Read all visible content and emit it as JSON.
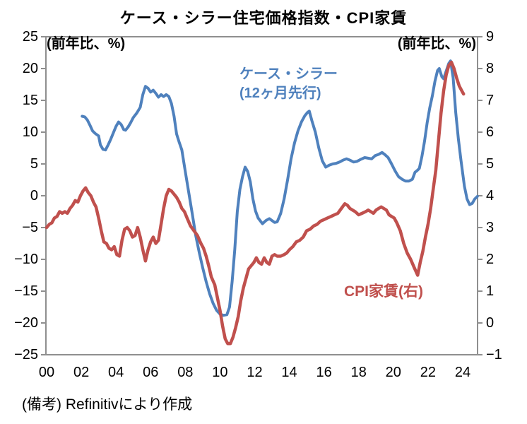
{
  "title": "ケース・シラー住宅価格指数・CPI家賃",
  "footer": "(備考) Refinitivにより作成",
  "colors": {
    "axis": "#8f8f8f",
    "case_shiller": "#4f81bd",
    "cpi_rent": "#c0504d"
  },
  "chart_data": {
    "type": "line",
    "title": "ケース・シラー住宅価格指数・CPI家賃",
    "grid": false,
    "x_axis": {
      "labels": [
        "00",
        "02",
        "04",
        "06",
        "08",
        "10",
        "12",
        "14",
        "16",
        "18",
        "20",
        "22",
        "24"
      ],
      "label_years": [
        2000,
        2002,
        2004,
        2006,
        2008,
        2010,
        2012,
        2014,
        2016,
        2018,
        2020,
        2022,
        2024
      ],
      "range_years": [
        2000,
        2024.9
      ]
    },
    "left_axis": {
      "unit": "(前年比、%)",
      "range": [
        -25,
        25
      ],
      "tick_values": [
        25,
        20,
        15,
        10,
        5,
        0,
        -5,
        -10,
        -15,
        -20,
        -25
      ],
      "tick_labels": [
        "25",
        "20",
        "15",
        "10",
        "5",
        "0",
        "−5",
        "−10",
        "−15",
        "−20",
        "−25"
      ]
    },
    "right_axis": {
      "unit": "(前年比、%)",
      "range": [
        -1,
        9
      ],
      "tick_values": [
        9,
        8,
        7,
        6,
        5,
        4,
        3,
        2,
        1,
        0,
        -1
      ],
      "tick_labels": [
        "9",
        "8",
        "7",
        "6",
        "5",
        "4",
        "3",
        "2",
        "1",
        "0",
        "−1"
      ]
    },
    "series": [
      {
        "name": "ケース・シラー(12ヶ月先行)",
        "legend_line1": "ケース・シラー",
        "legend_line2": "(12ヶ月先行)",
        "axis": "left",
        "color": "#4f81bd",
        "points": [
          [
            2002.05,
            12.5
          ],
          [
            2002.2,
            12.4
          ],
          [
            2002.35,
            11.9
          ],
          [
            2002.5,
            11.1
          ],
          [
            2002.65,
            10.2
          ],
          [
            2002.8,
            9.8
          ],
          [
            2003.0,
            9.4
          ],
          [
            2003.1,
            8.0
          ],
          [
            2003.25,
            7.3
          ],
          [
            2003.4,
            7.2
          ],
          [
            2003.55,
            8.0
          ],
          [
            2003.7,
            8.9
          ],
          [
            2003.85,
            9.9
          ],
          [
            2004.0,
            10.9
          ],
          [
            2004.15,
            11.6
          ],
          [
            2004.3,
            11.2
          ],
          [
            2004.45,
            10.4
          ],
          [
            2004.55,
            10.3
          ],
          [
            2004.7,
            10.8
          ],
          [
            2004.85,
            11.5
          ],
          [
            2005.0,
            12.3
          ],
          [
            2005.2,
            13.0
          ],
          [
            2005.4,
            13.9
          ],
          [
            2005.55,
            15.9
          ],
          [
            2005.7,
            17.2
          ],
          [
            2005.85,
            16.9
          ],
          [
            2006.0,
            16.3
          ],
          [
            2006.15,
            16.6
          ],
          [
            2006.3,
            16.1
          ],
          [
            2006.45,
            15.5
          ],
          [
            2006.6,
            15.9
          ],
          [
            2006.75,
            15.6
          ],
          [
            2006.9,
            15.9
          ],
          [
            2007.05,
            15.6
          ],
          [
            2007.2,
            14.5
          ],
          [
            2007.35,
            12.5
          ],
          [
            2007.5,
            9.7
          ],
          [
            2007.65,
            8.4
          ],
          [
            2007.8,
            7.2
          ],
          [
            2008.0,
            3.8
          ],
          [
            2008.2,
            0.5
          ],
          [
            2008.4,
            -2.8
          ],
          [
            2008.6,
            -6.2
          ],
          [
            2008.8,
            -8.9
          ],
          [
            2009.0,
            -11.3
          ],
          [
            2009.2,
            -13.5
          ],
          [
            2009.4,
            -15.4
          ],
          [
            2009.6,
            -16.9
          ],
          [
            2009.8,
            -18.0
          ],
          [
            2010.0,
            -18.6
          ],
          [
            2010.2,
            -18.8
          ],
          [
            2010.4,
            -18.7
          ],
          [
            2010.55,
            -17.5
          ],
          [
            2010.7,
            -13.5
          ],
          [
            2010.85,
            -8.5
          ],
          [
            2011.0,
            -2.5
          ],
          [
            2011.15,
            1.0
          ],
          [
            2011.3,
            3.0
          ],
          [
            2011.45,
            4.5
          ],
          [
            2011.6,
            3.8
          ],
          [
            2011.75,
            2.2
          ],
          [
            2011.9,
            -0.5
          ],
          [
            2012.05,
            -2.4
          ],
          [
            2012.2,
            -3.5
          ],
          [
            2012.45,
            -4.4
          ],
          [
            2012.65,
            -3.9
          ],
          [
            2012.85,
            -3.6
          ],
          [
            2013.0,
            -3.9
          ],
          [
            2013.15,
            -4.2
          ],
          [
            2013.3,
            -4.1
          ],
          [
            2013.5,
            -2.8
          ],
          [
            2013.7,
            -0.5
          ],
          [
            2013.9,
            2.5
          ],
          [
            2014.1,
            5.8
          ],
          [
            2014.3,
            8.3
          ],
          [
            2014.5,
            10.2
          ],
          [
            2014.7,
            11.6
          ],
          [
            2014.9,
            12.6
          ],
          [
            2015.05,
            13.1
          ],
          [
            2015.15,
            13.3
          ],
          [
            2015.3,
            11.8
          ],
          [
            2015.5,
            10.0
          ],
          [
            2015.7,
            7.5
          ],
          [
            2015.9,
            5.5
          ],
          [
            2016.1,
            4.5
          ],
          [
            2016.3,
            4.8
          ],
          [
            2016.5,
            5.0
          ],
          [
            2016.7,
            5.1
          ],
          [
            2016.9,
            5.3
          ],
          [
            2017.1,
            5.6
          ],
          [
            2017.3,
            5.8
          ],
          [
            2017.5,
            5.6
          ],
          [
            2017.7,
            5.3
          ],
          [
            2017.9,
            5.4
          ],
          [
            2018.1,
            5.7
          ],
          [
            2018.35,
            6.0
          ],
          [
            2018.55,
            5.9
          ],
          [
            2018.75,
            5.8
          ],
          [
            2018.95,
            6.3
          ],
          [
            2019.15,
            6.5
          ],
          [
            2019.35,
            6.8
          ],
          [
            2019.5,
            6.5
          ],
          [
            2019.7,
            6.0
          ],
          [
            2019.9,
            5.0
          ],
          [
            2020.1,
            3.9
          ],
          [
            2020.3,
            3.0
          ],
          [
            2020.5,
            2.6
          ],
          [
            2020.7,
            2.3
          ],
          [
            2020.9,
            2.3
          ],
          [
            2021.1,
            2.6
          ],
          [
            2021.25,
            3.7
          ],
          [
            2021.35,
            3.9
          ],
          [
            2021.5,
            4.3
          ],
          [
            2021.65,
            6.2
          ],
          [
            2021.8,
            8.6
          ],
          [
            2021.95,
            11.5
          ],
          [
            2022.1,
            13.8
          ],
          [
            2022.25,
            15.7
          ],
          [
            2022.4,
            18.0
          ],
          [
            2022.55,
            19.7
          ],
          [
            2022.65,
            20.0
          ],
          [
            2022.8,
            18.7
          ],
          [
            2022.9,
            18.4
          ],
          [
            2023.05,
            19.6
          ],
          [
            2023.2,
            20.8
          ],
          [
            2023.3,
            21.2
          ],
          [
            2023.45,
            18.5
          ],
          [
            2023.6,
            13.1
          ],
          [
            2023.75,
            9.0
          ],
          [
            2023.9,
            5.6
          ],
          [
            2024.1,
            1.5
          ],
          [
            2024.25,
            -0.5
          ],
          [
            2024.4,
            -1.4
          ],
          [
            2024.55,
            -1.2
          ],
          [
            2024.7,
            -0.5
          ],
          [
            2024.85,
            -0.1
          ]
        ]
      },
      {
        "name": "CPI家賃(右)",
        "legend": "CPI家賃(右)",
        "axis": "right",
        "color": "#c0504d",
        "points": [
          [
            2000.0,
            3.0
          ],
          [
            2000.15,
            3.1
          ],
          [
            2000.3,
            3.15
          ],
          [
            2000.45,
            3.3
          ],
          [
            2000.6,
            3.35
          ],
          [
            2000.75,
            3.5
          ],
          [
            2000.9,
            3.45
          ],
          [
            2001.05,
            3.5
          ],
          [
            2001.2,
            3.45
          ],
          [
            2001.35,
            3.6
          ],
          [
            2001.5,
            3.7
          ],
          [
            2001.65,
            3.85
          ],
          [
            2001.8,
            3.8
          ],
          [
            2001.95,
            4.0
          ],
          [
            2002.1,
            4.15
          ],
          [
            2002.25,
            4.25
          ],
          [
            2002.4,
            4.1
          ],
          [
            2002.55,
            4.0
          ],
          [
            2002.7,
            3.8
          ],
          [
            2002.85,
            3.65
          ],
          [
            2003.0,
            3.3
          ],
          [
            2003.15,
            2.9
          ],
          [
            2003.3,
            2.55
          ],
          [
            2003.45,
            2.5
          ],
          [
            2003.6,
            2.35
          ],
          [
            2003.75,
            2.3
          ],
          [
            2003.9,
            2.4
          ],
          [
            2004.05,
            2.15
          ],
          [
            2004.2,
            2.1
          ],
          [
            2004.35,
            2.6
          ],
          [
            2004.5,
            2.95
          ],
          [
            2004.65,
            3.0
          ],
          [
            2004.8,
            2.9
          ],
          [
            2004.95,
            2.7
          ],
          [
            2005.1,
            2.75
          ],
          [
            2005.25,
            3.0
          ],
          [
            2005.4,
            2.7
          ],
          [
            2005.55,
            2.3
          ],
          [
            2005.7,
            1.95
          ],
          [
            2005.85,
            2.3
          ],
          [
            2006.0,
            2.55
          ],
          [
            2006.15,
            2.7
          ],
          [
            2006.3,
            2.5
          ],
          [
            2006.45,
            2.6
          ],
          [
            2006.6,
            3.1
          ],
          [
            2006.75,
            3.6
          ],
          [
            2006.9,
            4.0
          ],
          [
            2007.05,
            4.2
          ],
          [
            2007.2,
            4.15
          ],
          [
            2007.35,
            4.05
          ],
          [
            2007.5,
            3.95
          ],
          [
            2007.65,
            3.8
          ],
          [
            2007.8,
            3.6
          ],
          [
            2007.95,
            3.5
          ],
          [
            2008.1,
            3.3
          ],
          [
            2008.3,
            3.05
          ],
          [
            2008.5,
            2.9
          ],
          [
            2008.7,
            2.75
          ],
          [
            2008.9,
            2.5
          ],
          [
            2009.05,
            2.35
          ],
          [
            2009.2,
            2.1
          ],
          [
            2009.35,
            1.8
          ],
          [
            2009.5,
            1.45
          ],
          [
            2009.7,
            1.2
          ],
          [
            2009.85,
            0.8
          ],
          [
            2010.0,
            0.4
          ],
          [
            2010.15,
            -0.1
          ],
          [
            2010.3,
            -0.5
          ],
          [
            2010.45,
            -0.65
          ],
          [
            2010.6,
            -0.65
          ],
          [
            2010.75,
            -0.45
          ],
          [
            2010.9,
            -0.15
          ],
          [
            2011.05,
            0.2
          ],
          [
            2011.2,
            0.7
          ],
          [
            2011.35,
            1.1
          ],
          [
            2011.5,
            1.4
          ],
          [
            2011.65,
            1.7
          ],
          [
            2011.8,
            1.8
          ],
          [
            2011.95,
            1.9
          ],
          [
            2012.1,
            2.05
          ],
          [
            2012.25,
            1.9
          ],
          [
            2012.4,
            1.85
          ],
          [
            2012.55,
            2.05
          ],
          [
            2012.7,
            1.9
          ],
          [
            2012.85,
            1.85
          ],
          [
            2013.0,
            2.1
          ],
          [
            2013.15,
            2.15
          ],
          [
            2013.3,
            2.1
          ],
          [
            2013.5,
            2.1
          ],
          [
            2013.7,
            2.15
          ],
          [
            2013.85,
            2.2
          ],
          [
            2014.0,
            2.3
          ],
          [
            2014.2,
            2.4
          ],
          [
            2014.4,
            2.55
          ],
          [
            2014.6,
            2.6
          ],
          [
            2014.8,
            2.7
          ],
          [
            2015.0,
            2.9
          ],
          [
            2015.2,
            2.95
          ],
          [
            2015.4,
            3.05
          ],
          [
            2015.6,
            3.1
          ],
          [
            2015.8,
            3.2
          ],
          [
            2016.0,
            3.25
          ],
          [
            2016.2,
            3.3
          ],
          [
            2016.4,
            3.35
          ],
          [
            2016.6,
            3.4
          ],
          [
            2016.8,
            3.45
          ],
          [
            2017.0,
            3.6
          ],
          [
            2017.2,
            3.75
          ],
          [
            2017.35,
            3.7
          ],
          [
            2017.5,
            3.6
          ],
          [
            2017.65,
            3.55
          ],
          [
            2017.8,
            3.5
          ],
          [
            2018.0,
            3.4
          ],
          [
            2018.2,
            3.45
          ],
          [
            2018.4,
            3.5
          ],
          [
            2018.55,
            3.55
          ],
          [
            2018.7,
            3.5
          ],
          [
            2018.85,
            3.45
          ],
          [
            2019.0,
            3.55
          ],
          [
            2019.15,
            3.6
          ],
          [
            2019.3,
            3.65
          ],
          [
            2019.45,
            3.6
          ],
          [
            2019.6,
            3.55
          ],
          [
            2019.75,
            3.4
          ],
          [
            2019.9,
            3.35
          ],
          [
            2020.05,
            3.3
          ],
          [
            2020.2,
            3.15
          ],
          [
            2020.4,
            2.9
          ],
          [
            2020.6,
            2.5
          ],
          [
            2020.8,
            2.2
          ],
          [
            2021.0,
            2.0
          ],
          [
            2021.2,
            1.75
          ],
          [
            2021.4,
            1.5
          ],
          [
            2021.55,
            1.9
          ],
          [
            2021.7,
            2.25
          ],
          [
            2021.85,
            2.7
          ],
          [
            2022.0,
            3.1
          ],
          [
            2022.15,
            3.6
          ],
          [
            2022.3,
            4.2
          ],
          [
            2022.45,
            4.8
          ],
          [
            2022.6,
            5.7
          ],
          [
            2022.75,
            6.6
          ],
          [
            2022.9,
            7.3
          ],
          [
            2023.05,
            7.8
          ],
          [
            2023.2,
            8.1
          ],
          [
            2023.35,
            8.2
          ],
          [
            2023.5,
            8.0
          ],
          [
            2023.65,
            7.7
          ],
          [
            2023.8,
            7.45
          ],
          [
            2023.95,
            7.3
          ],
          [
            2024.05,
            7.2
          ]
        ]
      }
    ]
  }
}
